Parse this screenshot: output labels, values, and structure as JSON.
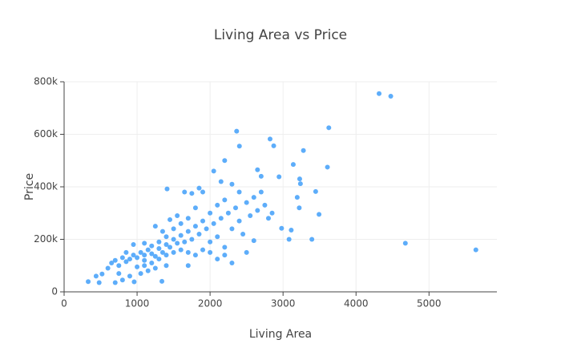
{
  "chart_data": {
    "type": "scatter",
    "title": "Living Area vs Price",
    "xlabel": "Living Area",
    "ylabel": "Price",
    "color": "#5DADFA",
    "grid": true,
    "xlim": [
      0,
      5930
    ],
    "ylim": [
      0,
      800000
    ],
    "xticks": [
      0,
      1000,
      2000,
      3000,
      4000,
      5000
    ],
    "yticks": [
      0,
      {
        "value": 200000,
        "label": "200k"
      },
      {
        "value": 400000,
        "label": "400k"
      },
      {
        "value": 600000,
        "label": "600k"
      },
      {
        "value": 800000,
        "label": "800k"
      }
    ],
    "x": [
      4316,
      4476,
      5642,
      4676,
      3627,
      2364,
      2822,
      2872,
      2402,
      3279,
      3608,
      3140,
      2945,
      3228,
      3238,
      3194,
      3222,
      3493,
      3395,
      3082,
      3447,
      3112,
      2980,
      1411,
      2200,
      330,
      480,
      438,
      520,
      700,
      800,
      960,
      1340,
      600,
      650,
      700,
      750,
      800,
      850,
      900,
      950,
      1000,
      1050,
      1100,
      1100,
      1150,
      1200,
      1200,
      1250,
      1300,
      1300,
      1350,
      1400,
      1400,
      1450,
      1500,
      1500,
      1550,
      1600,
      1600,
      1650,
      1700,
      1700,
      1750,
      1800,
      1800,
      1850,
      1900,
      1900,
      1950,
      2000,
      2000,
      2050,
      2100,
      2100,
      2150,
      2200,
      2200,
      2250,
      2300,
      2300,
      2350,
      2400,
      2400,
      2450,
      2500,
      2550,
      2600,
      2600,
      2650,
      2700,
      2750,
      2800,
      2850,
      1000,
      1100,
      1200,
      1300,
      1400,
      1500,
      1600,
      1700,
      1800,
      1900,
      2000,
      2100,
      2200,
      2300,
      2500,
      1650,
      1750,
      1850,
      2050,
      2150,
      2650,
      2700,
      1250,
      1350,
      1450,
      1550,
      900,
      1050,
      1150,
      1250,
      1400,
      1700,
      750,
      850,
      950,
      1100
    ],
    "y": [
      755000,
      745000,
      160000,
      185000,
      625000,
      612000,
      582000,
      556000,
      555000,
      538000,
      475000,
      485000,
      438000,
      430000,
      412000,
      360000,
      320000,
      295000,
      200000,
      200000,
      382000,
      235000,
      242000,
      392000,
      500000,
      39000,
      35000,
      60000,
      68000,
      35000,
      45000,
      38000,
      40000,
      90000,
      110000,
      120000,
      100000,
      130000,
      115000,
      125000,
      140000,
      130000,
      150000,
      140000,
      120000,
      160000,
      145000,
      175000,
      135000,
      165000,
      190000,
      150000,
      180000,
      210000,
      170000,
      200000,
      240000,
      185000,
      215000,
      260000,
      190000,
      230000,
      280000,
      200000,
      250000,
      320000,
      220000,
      270000,
      380000,
      240000,
      300000,
      190000,
      260000,
      330000,
      210000,
      280000,
      350000,
      170000,
      300000,
      240000,
      410000,
      320000,
      270000,
      380000,
      220000,
      340000,
      290000,
      195000,
      360000,
      310000,
      440000,
      330000,
      280000,
      300000,
      95000,
      100000,
      110000,
      125000,
      140000,
      150000,
      160000,
      150000,
      140000,
      160000,
      150000,
      125000,
      140000,
      110000,
      150000,
      380000,
      375000,
      395000,
      460000,
      420000,
      465000,
      380000,
      250000,
      230000,
      275000,
      290000,
      60000,
      70000,
      80000,
      90000,
      100000,
      100000,
      70000,
      150000,
      180000,
      185000
    ]
  }
}
